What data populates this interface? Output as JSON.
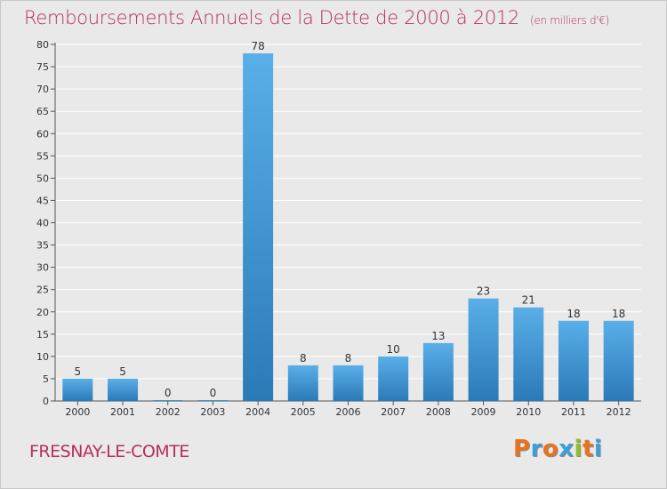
{
  "header": {
    "title": "Remboursements Annuels de la Dette de 2000 à 2012",
    "subtitle": "(en milliers d'€)"
  },
  "footer": {
    "commune": "FRESNAY-LE-COMTE",
    "logo": "Proxiti",
    "logo_colors": [
      "#e8731d",
      "#3aa0d8",
      "#e8731d",
      "#3aa0d8",
      "#8fbf2a",
      "#e8731d",
      "#3aa0d8"
    ]
  },
  "colors": {
    "accent": "#b5305a",
    "bar_light": "#5aafe8",
    "bar_dark": "#2a7ab8",
    "background": "#e9e9e9",
    "grid": "#ffffff"
  },
  "chart_data": {
    "type": "bar",
    "title": "Remboursements Annuels de la Dette de 2000 à 2012",
    "subtitle": "(en milliers d'€)",
    "xlabel": "",
    "ylabel": "",
    "categories": [
      "2000",
      "2001",
      "2002",
      "2003",
      "2004",
      "2005",
      "2006",
      "2007",
      "2008",
      "2009",
      "2010",
      "2011",
      "2012"
    ],
    "values": [
      5,
      5,
      0,
      0,
      78,
      8,
      8,
      10,
      13,
      23,
      21,
      18,
      18
    ],
    "value_labels": [
      "5",
      "5",
      "0",
      "0",
      "78",
      "8",
      "8",
      "10",
      "13",
      "23",
      "21",
      "18",
      "18"
    ],
    "ylim": [
      0,
      80
    ],
    "yticks": [
      "0",
      "5",
      "10",
      "15",
      "20",
      "25",
      "30",
      "35",
      "40",
      "45",
      "50",
      "55",
      "60",
      "65",
      "70",
      "75",
      "80"
    ],
    "grid": true
  }
}
